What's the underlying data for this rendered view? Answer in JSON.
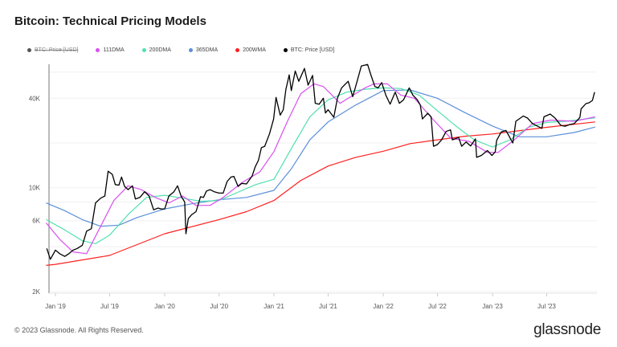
{
  "title": "Bitcoin: Technical Pricing Models",
  "footer": "© 2023 Glassnode. All Rights Reserved.",
  "logo": "glassnode",
  "legend": [
    {
      "label": "BTC: Price [USD]",
      "color": "#555555",
      "disabled": true
    },
    {
      "label": "111DMA",
      "color": "#d94ff0"
    },
    {
      "label": "200DMA",
      "color": "#4fe0b0"
    },
    {
      "label": "365DMA",
      "color": "#5b8fd9"
    },
    {
      "label": "200WMA",
      "color": "#ff2020"
    },
    {
      "label": "BTC: Price [USD]",
      "color": "#000000"
    }
  ],
  "chart_data": {
    "type": "line",
    "title": "Bitcoin: Technical Pricing Models",
    "y_scale": "log",
    "ylim": [
      2000,
      70000
    ],
    "y_ticks": [
      {
        "value": 2000,
        "label": "2K"
      },
      {
        "value": 6000,
        "label": "6K"
      },
      {
        "value": 10000,
        "label": "10K"
      },
      {
        "value": 40000,
        "label": "40K"
      }
    ],
    "x_ticks": [
      {
        "date": "2019-01-01",
        "label": "Jan '19"
      },
      {
        "date": "2019-07-01",
        "label": "Jul '19"
      },
      {
        "date": "2020-01-01",
        "label": "Jan '20"
      },
      {
        "date": "2020-07-01",
        "label": "Jul '20"
      },
      {
        "date": "2021-01-01",
        "label": "Jan '21"
      },
      {
        "date": "2021-07-01",
        "label": "Jul '21"
      },
      {
        "date": "2022-01-01",
        "label": "Jan '22"
      },
      {
        "date": "2022-07-01",
        "label": "Jul '22"
      },
      {
        "date": "2023-01-01",
        "label": "Jan '23"
      },
      {
        "date": "2023-07-01",
        "label": "Jul '23"
      }
    ],
    "grid": true,
    "legend_position": "top-left",
    "series": [
      {
        "name": "200WMA",
        "color": "#ff2020",
        "points": [
          [
            "2018-12-01",
            3000
          ],
          [
            "2019-01-01",
            3050
          ],
          [
            "2019-07-01",
            3500
          ],
          [
            "2020-01-01",
            4900
          ],
          [
            "2020-07-01",
            6100
          ],
          [
            "2020-10-01",
            6900
          ],
          [
            "2021-01-01",
            8200
          ],
          [
            "2021-04-01",
            11200
          ],
          [
            "2021-07-01",
            14000
          ],
          [
            "2021-10-01",
            16000
          ],
          [
            "2022-01-01",
            17600
          ],
          [
            "2022-04-01",
            19800
          ],
          [
            "2022-07-01",
            21000
          ],
          [
            "2022-10-01",
            22200
          ],
          [
            "2023-01-01",
            23000
          ],
          [
            "2023-07-01",
            25500
          ],
          [
            "2023-12-10",
            27700
          ]
        ]
      },
      {
        "name": "365DMA",
        "color": "#5b8fd9",
        "points": [
          [
            "2018-12-01",
            7900
          ],
          [
            "2019-02-01",
            7000
          ],
          [
            "2019-04-01",
            6100
          ],
          [
            "2019-06-01",
            5500
          ],
          [
            "2019-08-01",
            5600
          ],
          [
            "2019-10-01",
            6300
          ],
          [
            "2020-01-01",
            7200
          ],
          [
            "2020-04-01",
            7800
          ],
          [
            "2020-07-01",
            8300
          ],
          [
            "2020-10-01",
            8600
          ],
          [
            "2021-01-01",
            9600
          ],
          [
            "2021-03-01",
            13500
          ],
          [
            "2021-05-01",
            21000
          ],
          [
            "2021-07-01",
            27700
          ],
          [
            "2021-10-01",
            36000
          ],
          [
            "2022-01-01",
            45000
          ],
          [
            "2022-04-01",
            45500
          ],
          [
            "2022-07-01",
            40000
          ],
          [
            "2022-10-01",
            32000
          ],
          [
            "2023-01-01",
            26000
          ],
          [
            "2023-04-01",
            22000
          ],
          [
            "2023-07-01",
            22000
          ],
          [
            "2023-10-01",
            23500
          ],
          [
            "2023-12-10",
            25600
          ]
        ]
      },
      {
        "name": "200DMA",
        "color": "#4fe0b0",
        "points": [
          [
            "2018-12-01",
            6100
          ],
          [
            "2019-02-01",
            5200
          ],
          [
            "2019-04-01",
            4400
          ],
          [
            "2019-05-15",
            4200
          ],
          [
            "2019-07-01",
            4800
          ],
          [
            "2019-09-01",
            6600
          ],
          [
            "2019-11-01",
            8600
          ],
          [
            "2020-01-01",
            8900
          ],
          [
            "2020-03-01",
            8500
          ],
          [
            "2020-05-01",
            8100
          ],
          [
            "2020-07-01",
            8200
          ],
          [
            "2020-09-01",
            9300
          ],
          [
            "2020-11-01",
            10500
          ],
          [
            "2021-01-01",
            11400
          ],
          [
            "2021-03-01",
            18500
          ],
          [
            "2021-05-01",
            30000
          ],
          [
            "2021-07-01",
            39000
          ],
          [
            "2021-09-01",
            44000
          ],
          [
            "2021-11-01",
            46000
          ],
          [
            "2022-01-01",
            47000
          ],
          [
            "2022-03-01",
            46500
          ],
          [
            "2022-05-01",
            42000
          ],
          [
            "2022-07-01",
            33000
          ],
          [
            "2022-09-01",
            26000
          ],
          [
            "2022-11-01",
            21000
          ],
          [
            "2023-01-01",
            18800
          ],
          [
            "2023-03-01",
            21000
          ],
          [
            "2023-05-01",
            25500
          ],
          [
            "2023-07-01",
            27500
          ],
          [
            "2023-09-01",
            28000
          ],
          [
            "2023-12-10",
            29500
          ]
        ]
      },
      {
        "name": "111DMA",
        "color": "#d94ff0",
        "points": [
          [
            "2018-12-01",
            5800
          ],
          [
            "2019-01-15",
            4500
          ],
          [
            "2019-03-01",
            3700
          ],
          [
            "2019-04-15",
            3600
          ],
          [
            "2019-06-01",
            5500
          ],
          [
            "2019-07-15",
            8200
          ],
          [
            "2019-09-01",
            10300
          ],
          [
            "2019-10-15",
            9700
          ],
          [
            "2019-12-01",
            8600
          ],
          [
            "2020-01-15",
            7900
          ],
          [
            "2020-03-01",
            8800
          ],
          [
            "2020-04-15",
            7600
          ],
          [
            "2020-06-01",
            7600
          ],
          [
            "2020-07-15",
            8600
          ],
          [
            "2020-09-15",
            10800
          ],
          [
            "2020-11-15",
            12800
          ],
          [
            "2021-01-01",
            17500
          ],
          [
            "2021-02-15",
            28000
          ],
          [
            "2021-04-01",
            43000
          ],
          [
            "2021-05-15",
            50000
          ],
          [
            "2021-06-15",
            48000
          ],
          [
            "2021-08-10",
            37000
          ],
          [
            "2021-09-15",
            41000
          ],
          [
            "2021-11-01",
            47000
          ],
          [
            "2021-12-01",
            50000
          ],
          [
            "2022-01-15",
            50000
          ],
          [
            "2022-03-01",
            42000
          ],
          [
            "2022-04-15",
            40000
          ],
          [
            "2022-06-15",
            29000
          ],
          [
            "2022-08-15",
            21500
          ],
          [
            "2022-10-15",
            20500
          ],
          [
            "2022-12-15",
            17300
          ],
          [
            "2023-01-20",
            17300
          ],
          [
            "2023-03-15",
            21000
          ],
          [
            "2023-05-15",
            27000
          ],
          [
            "2023-07-15",
            28500
          ],
          [
            "2023-10-01",
            28000
          ],
          [
            "2023-12-10",
            30000
          ]
        ]
      },
      {
        "name": "BTC: Price [USD]",
        "color": "#000000",
        "points": [
          [
            "2018-12-03",
            3900
          ],
          [
            "2018-12-15",
            3300
          ],
          [
            "2019-01-01",
            3800
          ],
          [
            "2019-01-15",
            3600
          ],
          [
            "2019-02-01",
            3450
          ],
          [
            "2019-02-15",
            3600
          ],
          [
            "2019-03-01",
            3800
          ],
          [
            "2019-03-15",
            3900
          ],
          [
            "2019-04-01",
            4100
          ],
          [
            "2019-04-15",
            5100
          ],
          [
            "2019-05-01",
            5300
          ],
          [
            "2019-05-15",
            7900
          ],
          [
            "2019-06-01",
            8500
          ],
          [
            "2019-06-15",
            8800
          ],
          [
            "2019-06-26",
            12900
          ],
          [
            "2019-07-10",
            12300
          ],
          [
            "2019-07-20",
            10500
          ],
          [
            "2019-08-01",
            10400
          ],
          [
            "2019-08-10",
            11800
          ],
          [
            "2019-08-20",
            10200
          ],
          [
            "2019-09-01",
            9700
          ],
          [
            "2019-09-15",
            10300
          ],
          [
            "2019-09-25",
            8400
          ],
          [
            "2019-10-10",
            8600
          ],
          [
            "2019-10-26",
            9400
          ],
          [
            "2019-11-10",
            8800
          ],
          [
            "2019-11-25",
            7100
          ],
          [
            "2019-12-10",
            7300
          ],
          [
            "2019-12-20",
            7200
          ],
          [
            "2020-01-01",
            7200
          ],
          [
            "2020-01-15",
            8800
          ],
          [
            "2020-02-01",
            9400
          ],
          [
            "2020-02-13",
            10300
          ],
          [
            "2020-02-25",
            8800
          ],
          [
            "2020-03-08",
            8000
          ],
          [
            "2020-03-12",
            4900
          ],
          [
            "2020-03-20",
            6200
          ],
          [
            "2020-04-01",
            6600
          ],
          [
            "2020-04-15",
            6900
          ],
          [
            "2020-04-30",
            8700
          ],
          [
            "2020-05-10",
            8600
          ],
          [
            "2020-05-20",
            9500
          ],
          [
            "2020-06-01",
            9700
          ],
          [
            "2020-06-15",
            9400
          ],
          [
            "2020-07-01",
            9200
          ],
          [
            "2020-07-15",
            9200
          ],
          [
            "2020-07-28",
            11000
          ],
          [
            "2020-08-10",
            11800
          ],
          [
            "2020-08-20",
            11900
          ],
          [
            "2020-09-03",
            10200
          ],
          [
            "2020-09-15",
            10700
          ],
          [
            "2020-10-01",
            10600
          ],
          [
            "2020-10-20",
            12000
          ],
          [
            "2020-10-30",
            13800
          ],
          [
            "2020-11-10",
            15300
          ],
          [
            "2020-11-20",
            18600
          ],
          [
            "2020-12-01",
            19000
          ],
          [
            "2020-12-17",
            23000
          ],
          [
            "2020-12-31",
            29000
          ],
          [
            "2021-01-08",
            40500
          ],
          [
            "2021-01-22",
            30800
          ],
          [
            "2021-02-01",
            33500
          ],
          [
            "2021-02-10",
            46000
          ],
          [
            "2021-02-21",
            57500
          ],
          [
            "2021-02-28",
            45000
          ],
          [
            "2021-03-13",
            61000
          ],
          [
            "2021-03-25",
            52000
          ],
          [
            "2021-04-13",
            63500
          ],
          [
            "2021-04-25",
            49000
          ],
          [
            "2021-05-10",
            57000
          ],
          [
            "2021-05-19",
            37000
          ],
          [
            "2021-06-01",
            36500
          ],
          [
            "2021-06-15",
            40000
          ],
          [
            "2021-06-22",
            31800
          ],
          [
            "2021-07-01",
            33500
          ],
          [
            "2021-07-20",
            29800
          ],
          [
            "2021-08-01",
            40000
          ],
          [
            "2021-08-15",
            47000
          ],
          [
            "2021-09-06",
            52000
          ],
          [
            "2021-09-21",
            41000
          ],
          [
            "2021-10-01",
            48000
          ],
          [
            "2021-10-20",
            66000
          ],
          [
            "2021-11-10",
            67500
          ],
          [
            "2021-11-20",
            58000
          ],
          [
            "2021-12-04",
            48000
          ],
          [
            "2021-12-15",
            47000
          ],
          [
            "2021-12-27",
            51000
          ],
          [
            "2022-01-10",
            41800
          ],
          [
            "2022-01-24",
            36500
          ],
          [
            "2022-02-10",
            44000
          ],
          [
            "2022-02-24",
            37000
          ],
          [
            "2022-03-10",
            39000
          ],
          [
            "2022-03-29",
            47000
          ],
          [
            "2022-04-10",
            42000
          ],
          [
            "2022-04-25",
            39000
          ],
          [
            "2022-05-05",
            36000
          ],
          [
            "2022-05-12",
            29000
          ],
          [
            "2022-05-30",
            31700
          ],
          [
            "2022-06-10",
            30000
          ],
          [
            "2022-06-18",
            19000
          ],
          [
            "2022-07-01",
            19500
          ],
          [
            "2022-07-15",
            21000
          ],
          [
            "2022-07-30",
            23900
          ],
          [
            "2022-08-14",
            24500
          ],
          [
            "2022-08-20",
            21000
          ],
          [
            "2022-09-10",
            21800
          ],
          [
            "2022-09-20",
            19000
          ],
          [
            "2022-10-05",
            20300
          ],
          [
            "2022-10-20",
            19100
          ],
          [
            "2022-11-05",
            21300
          ],
          [
            "2022-11-09",
            16000
          ],
          [
            "2022-11-25",
            16500
          ],
          [
            "2022-12-15",
            17800
          ],
          [
            "2022-12-30",
            16500
          ],
          [
            "2023-01-10",
            17400
          ],
          [
            "2023-01-15",
            20800
          ],
          [
            "2023-01-30",
            23700
          ],
          [
            "2023-02-15",
            24300
          ],
          [
            "2023-03-10",
            20000
          ],
          [
            "2023-03-20",
            28000
          ],
          [
            "2023-04-14",
            30400
          ],
          [
            "2023-04-28",
            29400
          ],
          [
            "2023-05-15",
            27000
          ],
          [
            "2023-06-15",
            25100
          ],
          [
            "2023-06-22",
            30000
          ],
          [
            "2023-07-13",
            31300
          ],
          [
            "2023-07-30",
            29300
          ],
          [
            "2023-08-17",
            26300
          ],
          [
            "2023-09-01",
            25900
          ],
          [
            "2023-09-15",
            26600
          ],
          [
            "2023-10-01",
            27000
          ],
          [
            "2023-10-20",
            29700
          ],
          [
            "2023-10-24",
            33900
          ],
          [
            "2023-11-09",
            36800
          ],
          [
            "2023-11-20",
            37300
          ],
          [
            "2023-12-01",
            38700
          ],
          [
            "2023-12-08",
            44000
          ]
        ]
      }
    ]
  }
}
